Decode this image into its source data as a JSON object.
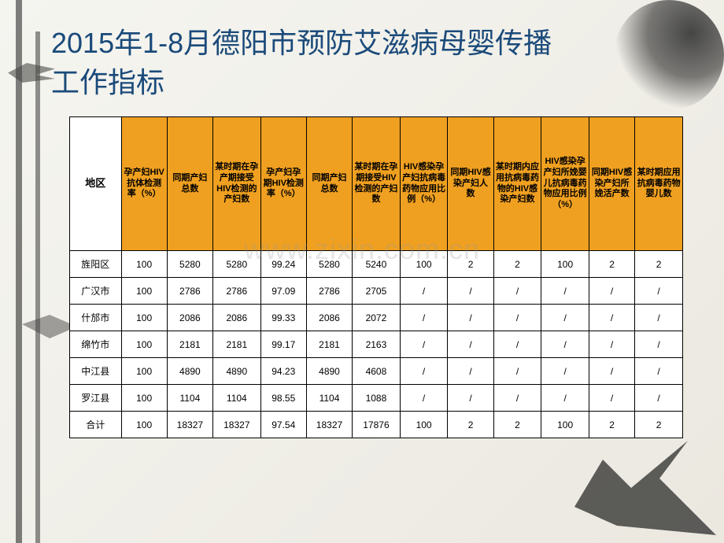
{
  "title_line1": "2015年1-8月德阳市预防艾滋病母婴传播",
  "title_line2": "工作指标",
  "watermark": "www.zixin.com.cn",
  "table": {
    "headers": [
      "地区",
      "孕产妇HIV抗体检测率（%）",
      "同期产妇总数",
      "某时期在孕产期接受HIV检测的产妇数",
      "孕产妇孕期HIV检测率（%）",
      "同期产妇总数",
      "某时期在孕期接受HIV检测的产妇数",
      "HIV感染孕产妇抗病毒药物应用比例（%）",
      "同期HIV感染产妇人数",
      "某时期内应用抗病毒药物的HIV感染产妇数",
      "HIV感染孕产妇所娩婴儿抗病毒药物应用比例（%）",
      "同期HIV感染产妇所娩活产数",
      "某时期应用抗病毒药物婴儿数"
    ],
    "rows": [
      [
        "旌阳区",
        "100",
        "5280",
        "5280",
        "99.24",
        "5280",
        "5240",
        "100",
        "2",
        "2",
        "100",
        "2",
        "2"
      ],
      [
        "广汉市",
        "100",
        "2786",
        "2786",
        "97.09",
        "2786",
        "2705",
        "/",
        "/",
        "/",
        "/",
        "/",
        "/"
      ],
      [
        "什邡市",
        "100",
        "2086",
        "2086",
        "99.33",
        "2086",
        "2072",
        "/",
        "/",
        "/",
        "/",
        "/",
        "/"
      ],
      [
        "绵竹市",
        "100",
        "2181",
        "2181",
        "99.17",
        "2181",
        "2163",
        "/",
        "/",
        "/",
        "/",
        "/",
        "/"
      ],
      [
        "中江县",
        "100",
        "4890",
        "4890",
        "94.23",
        "4890",
        "4608",
        "/",
        "/",
        "/",
        "/",
        "/",
        "/"
      ],
      [
        "罗江县",
        "100",
        "1104",
        "1104",
        "98.55",
        "1104",
        "1088",
        "/",
        "/",
        "/",
        "/",
        "/",
        "/"
      ],
      [
        "合计",
        "100",
        "18327",
        "18327",
        "97.54",
        "18327",
        "17876",
        "100",
        "2",
        "2",
        "100",
        "2",
        "2"
      ]
    ]
  }
}
